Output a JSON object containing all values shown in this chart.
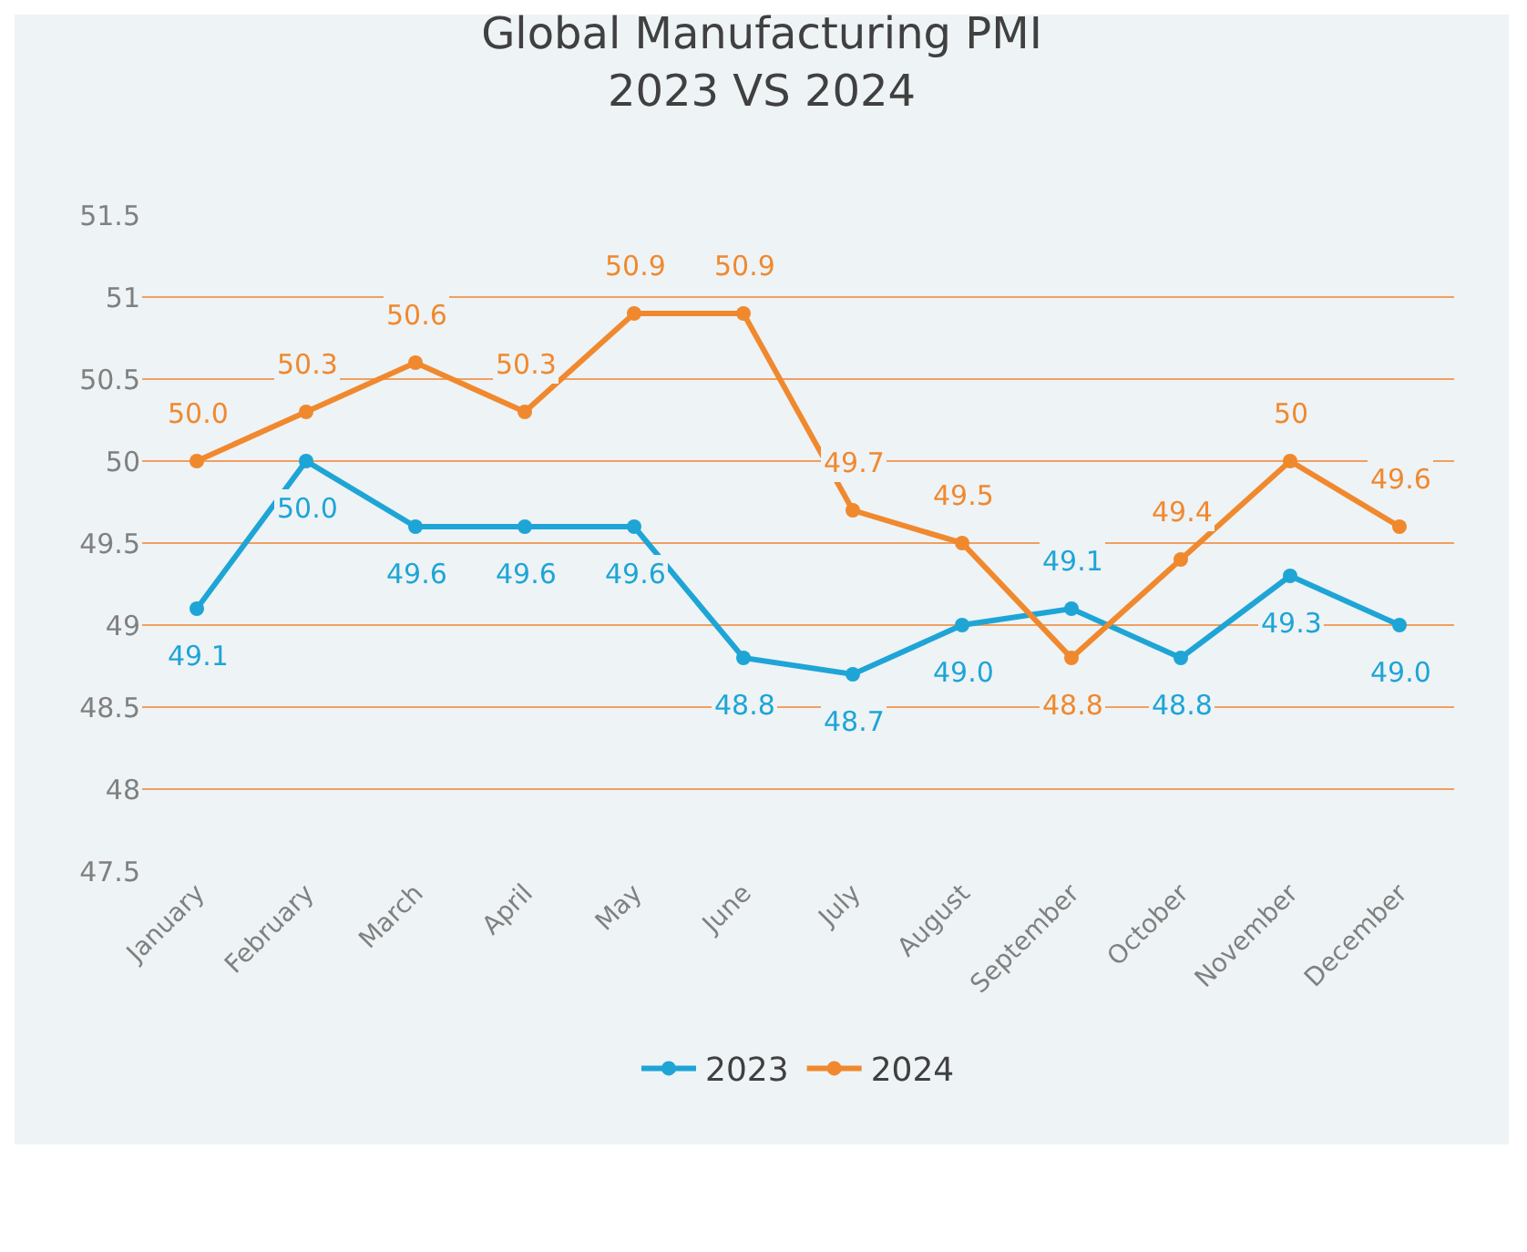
{
  "chart_data": {
    "type": "line",
    "title": "Global Manufacturing PMI\n2023 VS 2024",
    "categories": [
      "January",
      "February",
      "March",
      "April",
      "May",
      "June",
      "July",
      "August",
      "September",
      "October",
      "November",
      "December"
    ],
    "series": [
      {
        "name": "2023",
        "color": "#1ea5d6",
        "values": [
          49.1,
          50.0,
          49.6,
          49.6,
          49.6,
          48.8,
          48.7,
          49.0,
          49.1,
          48.8,
          49.3,
          49.0
        ],
        "value_labels": [
          "49.1",
          "50.0",
          "49.6",
          "49.6",
          "49.6",
          "48.8",
          "48.7",
          "49.0",
          "49.1",
          "48.8",
          "49.3",
          "49.0"
        ]
      },
      {
        "name": "2024",
        "color": "#f0892e",
        "values": [
          50.0,
          50.3,
          50.6,
          50.3,
          50.9,
          50.9,
          49.7,
          49.5,
          48.8,
          49.4,
          50,
          49.6
        ],
        "value_labels": [
          "50.0",
          "50.3",
          "50.6",
          "50.3",
          "50.9",
          "50.9",
          "49.7",
          "49.5",
          "48.8",
          "49.4",
          "50",
          "49.6"
        ]
      }
    ],
    "ylim": [
      47.5,
      51.5
    ],
    "yticks": [
      47.5,
      48,
      48.5,
      49,
      49.5,
      50,
      50.5,
      51,
      51.5
    ],
    "grid": "y",
    "legend": "bottom",
    "marker": "circle",
    "line_style": "solid"
  }
}
